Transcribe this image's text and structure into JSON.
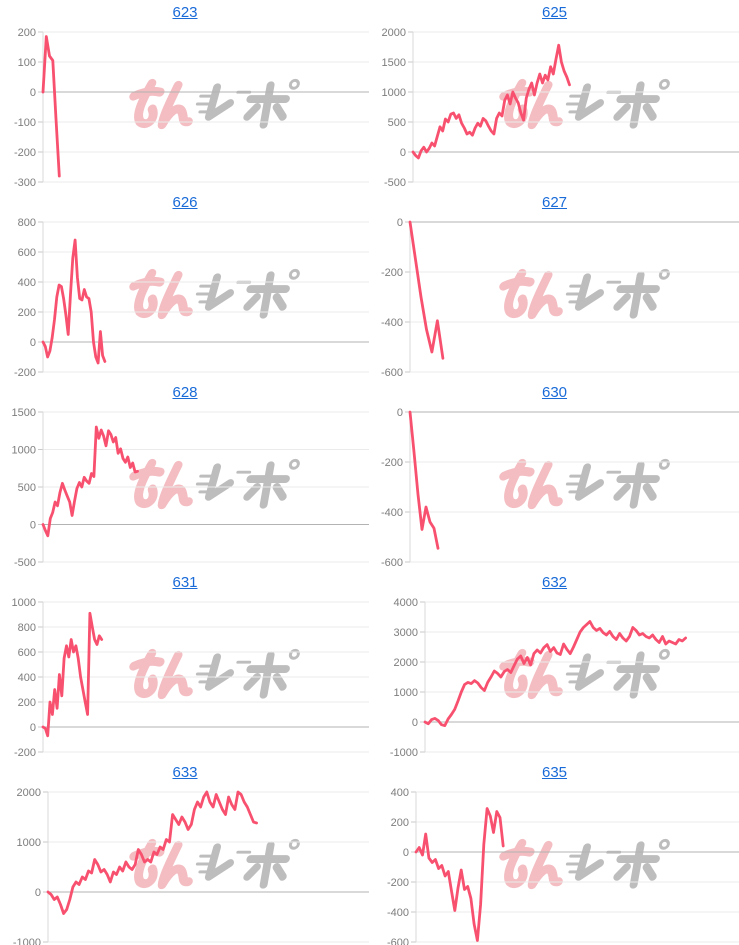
{
  "page": {
    "background": "#ffffff"
  },
  "styles": {
    "line_color": "#f8516f",
    "link_color": "#1a6bd8",
    "tick_label_color": "#7d7d7d",
    "grid_color": "#ebebeb",
    "zero_line_color": "#b3b3b3",
    "axis_color": "#d9d9d9",
    "tick_mark_color": "#c9c9c9"
  },
  "watermark": {
    "name": "minrepo-logo",
    "pink": "#f3bdc2",
    "gray": "#bdbdbd"
  },
  "chart_data": [
    {
      "type": "line",
      "title": "623",
      "ylabel": "",
      "xlabel": "",
      "grid": true,
      "legend": false,
      "ylim": [
        -300,
        200
      ],
      "ytick_step": 100,
      "axis_x": 43,
      "x_extent": 0.05,
      "values": [
        0,
        185,
        120,
        105,
        -90,
        -280
      ]
    },
    {
      "type": "line",
      "title": "625",
      "ylabel": "",
      "xlabel": "",
      "grid": true,
      "legend": false,
      "ylim": [
        -500,
        2000
      ],
      "ytick_step": 500,
      "axis_x": 43,
      "x_extent": 0.48,
      "values": [
        0,
        -60,
        -100,
        20,
        80,
        0,
        60,
        150,
        100,
        260,
        420,
        350,
        550,
        500,
        630,
        650,
        560,
        620,
        480,
        400,
        300,
        330,
        280,
        400,
        480,
        430,
        560,
        520,
        430,
        350,
        300,
        560,
        650,
        600,
        860,
        950,
        800,
        1000,
        900,
        820,
        650,
        530,
        900,
        1050,
        1150,
        950,
        1150,
        1300,
        1150,
        1280,
        1200,
        1420,
        1300,
        1550,
        1780,
        1500,
        1350,
        1250,
        1120
      ]
    },
    {
      "type": "line",
      "title": "626",
      "ylabel": "",
      "xlabel": "",
      "grid": true,
      "legend": false,
      "ylim": [
        -200,
        800
      ],
      "ytick_step": 200,
      "axis_x": 43,
      "x_extent": 0.19,
      "values": [
        0,
        -30,
        -100,
        -60,
        30,
        150,
        300,
        380,
        370,
        290,
        180,
        50,
        320,
        560,
        680,
        430,
        290,
        280,
        350,
        300,
        290,
        200,
        0,
        -100,
        -140,
        70,
        -90,
        -130
      ]
    },
    {
      "type": "line",
      "title": "627",
      "ylabel": "",
      "xlabel": "",
      "grid": true,
      "legend": false,
      "ylim": [
        -600,
        0
      ],
      "ytick_step": 200,
      "axis_x": 40,
      "x_extent": 0.1,
      "values": [
        0,
        -150,
        -300,
        -430,
        -520,
        -395,
        -545
      ]
    },
    {
      "type": "line",
      "title": "628",
      "ylabel": "",
      "xlabel": "",
      "grid": true,
      "legend": false,
      "ylim": [
        -500,
        1500
      ],
      "ytick_step": 500,
      "axis_x": 43,
      "x_extent": 0.29,
      "values": [
        0,
        -80,
        -150,
        80,
        160,
        300,
        250,
        430,
        550,
        460,
        380,
        300,
        120,
        310,
        480,
        560,
        500,
        630,
        580,
        550,
        680,
        640,
        1300,
        1150,
        1260,
        1180,
        1050,
        1250,
        1200,
        1100,
        1160,
        950,
        1010,
        880,
        830,
        900,
        760,
        820,
        700,
        710
      ]
    },
    {
      "type": "line",
      "title": "630",
      "ylabel": "",
      "xlabel": "",
      "grid": true,
      "legend": false,
      "ylim": [
        -600,
        0
      ],
      "ytick_step": 200,
      "axis_x": 40,
      "x_extent": 0.085,
      "values": [
        0,
        -160,
        -330,
        -470,
        -380,
        -440,
        -465,
        -545
      ]
    },
    {
      "type": "line",
      "title": "631",
      "ylabel": "",
      "xlabel": "",
      "grid": true,
      "legend": false,
      "ylim": [
        -200,
        1000
      ],
      "ytick_step": 200,
      "axis_x": 43,
      "x_extent": 0.18,
      "values": [
        0,
        -10,
        -70,
        200,
        100,
        300,
        150,
        420,
        250,
        550,
        650,
        560,
        700,
        600,
        650,
        550,
        400,
        300,
        200,
        100,
        910,
        800,
        700,
        660,
        730,
        700
      ]
    },
    {
      "type": "line",
      "title": "632",
      "ylabel": "",
      "xlabel": "",
      "grid": true,
      "legend": false,
      "ylim": [
        -1000,
        4000
      ],
      "ytick_step": 1000,
      "axis_x": 55,
      "x_extent": 0.83,
      "values": [
        0,
        -60,
        80,
        120,
        50,
        -90,
        -120,
        100,
        250,
        420,
        700,
        1000,
        1250,
        1320,
        1280,
        1380,
        1300,
        1150,
        1050,
        1320,
        1500,
        1700,
        1620,
        1500,
        1680,
        1750,
        1650,
        1880,
        2100,
        2200,
        1950,
        2150,
        1900,
        2280,
        2400,
        2300,
        2480,
        2580,
        2350,
        2480,
        2300,
        2250,
        2600,
        2420,
        2280,
        2500,
        2750,
        3000,
        3150,
        3250,
        3350,
        3150,
        3050,
        3120,
        2980,
        2900,
        3020,
        2850,
        2750,
        2950,
        2800,
        2700,
        2850,
        3150,
        3050,
        2900,
        2950,
        2850,
        2800,
        2900,
        2750,
        2650,
        2850,
        2600,
        2700,
        2650,
        2600,
        2750,
        2700,
        2800
      ]
    },
    {
      "type": "line",
      "title": "633",
      "ylabel": "",
      "xlabel": "",
      "grid": true,
      "legend": false,
      "ylim": [
        -1000,
        2000
      ],
      "ytick_step": 1000,
      "axis_x": 48,
      "x_extent": 0.65,
      "values": [
        0,
        -50,
        -150,
        -100,
        -250,
        -430,
        -350,
        -150,
        100,
        200,
        150,
        300,
        250,
        420,
        380,
        650,
        550,
        400,
        450,
        350,
        200,
        400,
        350,
        500,
        420,
        600,
        500,
        450,
        550,
        850,
        750,
        600,
        650,
        600,
        800,
        750,
        900,
        850,
        1050,
        1000,
        1550,
        1450,
        1350,
        1500,
        1400,
        1250,
        1350,
        1650,
        1800,
        1700,
        1900,
        2000,
        1800,
        1700,
        1950,
        1800,
        1650,
        1550,
        1900,
        1750,
        1650,
        2000,
        1950,
        1800,
        1700,
        1550,
        1400,
        1380
      ]
    },
    {
      "type": "line",
      "title": "635",
      "ylabel": "",
      "xlabel": "",
      "grid": true,
      "legend": false,
      "ylim": [
        -600,
        400
      ],
      "ytick_step": 200,
      "axis_x": 46,
      "x_extent": 0.27,
      "values": [
        0,
        30,
        -20,
        120,
        -40,
        -70,
        -50,
        -110,
        -90,
        -160,
        -130,
        -260,
        -390,
        -240,
        -120,
        -250,
        -230,
        -310,
        -480,
        -590,
        -350,
        50,
        290,
        240,
        130,
        270,
        230,
        40
      ]
    }
  ]
}
